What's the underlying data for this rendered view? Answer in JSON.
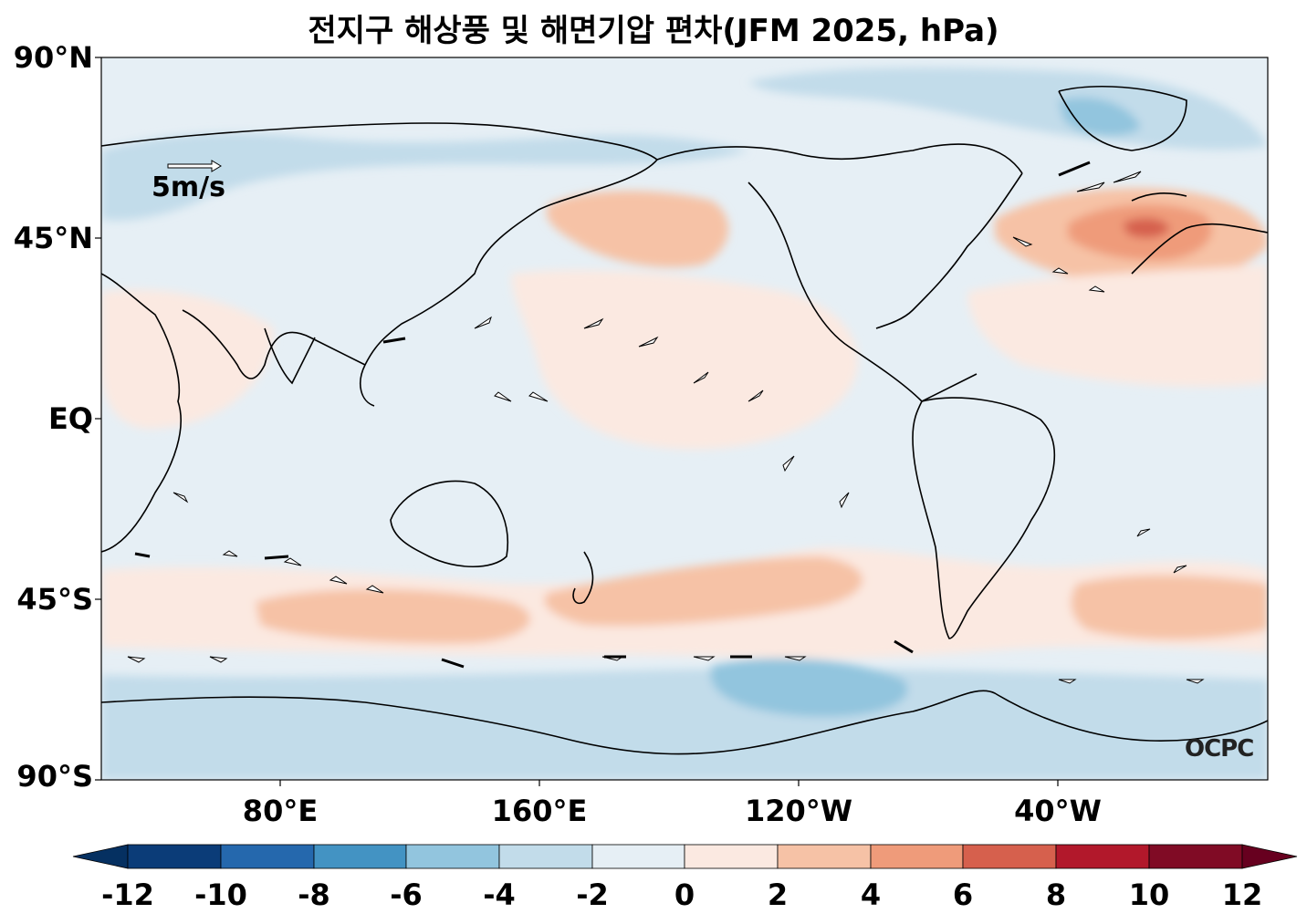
{
  "title": "전지구 해상풍 및 해면기압 편차(JFM 2025, hPa)",
  "lat_labels": [
    "90°N",
    "45°N",
    "EQ",
    "45°S",
    "90°S"
  ],
  "lon_labels": [
    "80°E",
    "160°E",
    "120°W",
    "40°W"
  ],
  "wind_scale_label": "5m/s",
  "logo_text": "OCPC",
  "colorbar": {
    "ticks": [
      "-12",
      "-10",
      "-8",
      "-6",
      "-4",
      "-2",
      "0",
      "2",
      "4",
      "6",
      "8",
      "10",
      "12"
    ],
    "colors": [
      "#0b3c78",
      "#2568ad",
      "#4393c3",
      "#92c5de",
      "#c2dcea",
      "#e6eff5",
      "#fbe9e1",
      "#f6c2a6",
      "#ef9b7a",
      "#d6604d",
      "#b2182b",
      "#800b25"
    ]
  }
}
